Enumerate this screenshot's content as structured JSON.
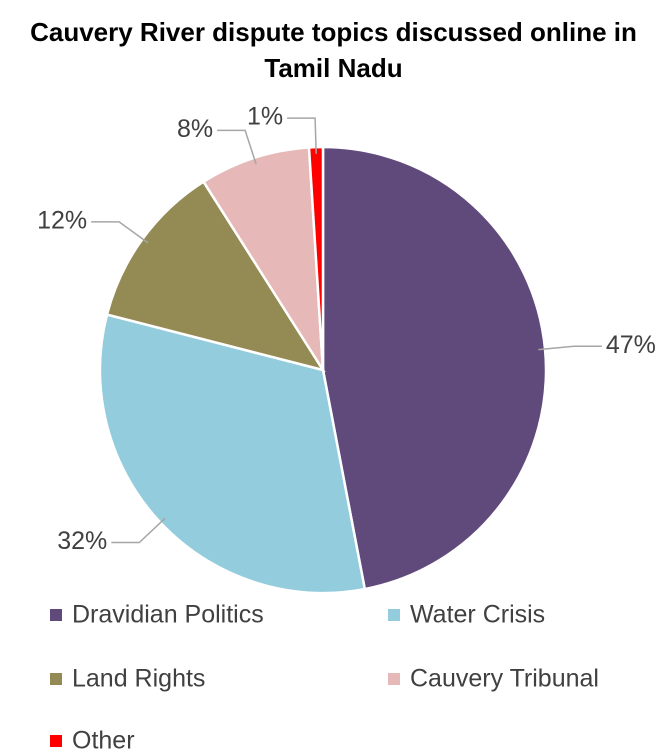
{
  "chart_data": {
    "type": "pie",
    "title": "Cauvery River dispute topics discussed online in Tamil Nadu",
    "categories": [
      "Dravidian Politics",
      "Water Crisis",
      "Land Rights",
      "Cauvery Tribunal",
      "Other"
    ],
    "values": [
      47,
      32,
      12,
      8,
      1
    ],
    "value_labels": [
      "47%",
      "32%",
      "12%",
      "8%",
      "1%"
    ],
    "colors": [
      "#604a7b",
      "#93cddd",
      "#948a54",
      "#e6b9b8",
      "#ff0000"
    ],
    "legend": "bottom"
  }
}
